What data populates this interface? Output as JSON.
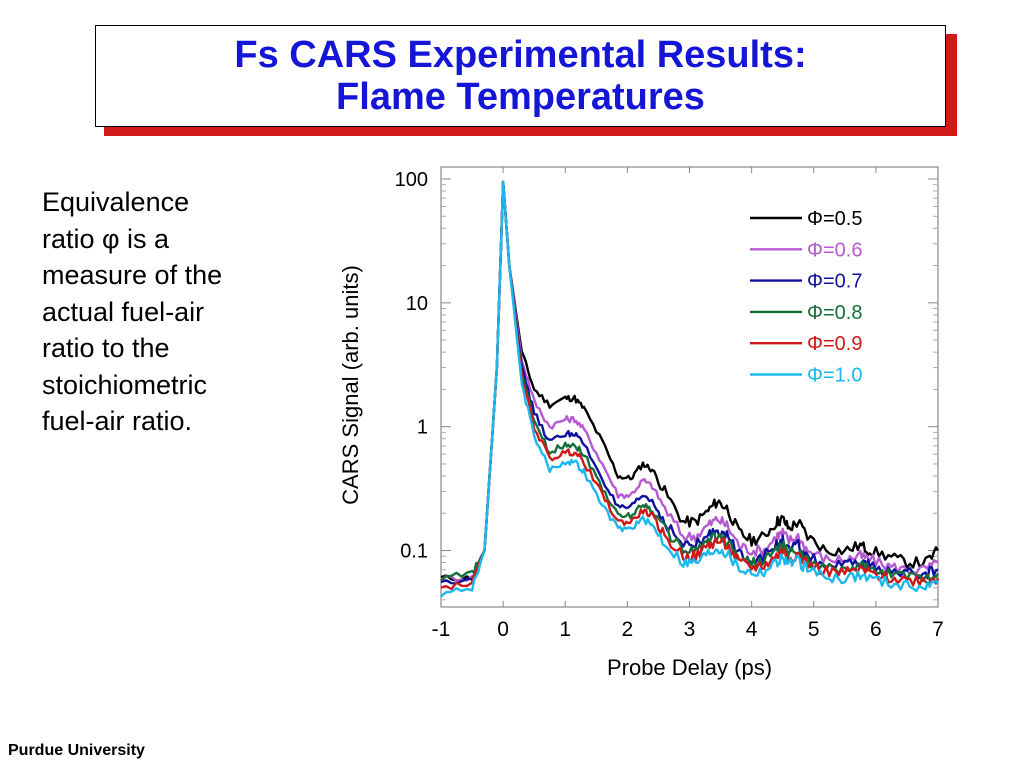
{
  "slide": {
    "title_lines": [
      "Fs CARS Experimental Results:",
      "Flame Temperatures"
    ],
    "body_lines": [
      "Equivalence",
      "ratio φ is a",
      "measure of the",
      "actual fuel-air",
      "ratio to the",
      "stoichiometric",
      "fuel-air ratio."
    ],
    "footer": "Purdue University",
    "title_color": "#1515d8",
    "title_shadow_color": "#d11a1a"
  },
  "chart_data": {
    "type": "line",
    "xlabel": "Probe Delay (ps)",
    "ylabel": "CARS Signal (arb. units)",
    "xlim": [
      -1,
      7
    ],
    "ylim": [
      0.035,
      100
    ],
    "y_scale": "log",
    "x_ticks": [
      "-1",
      "0",
      "1",
      "2",
      "3",
      "4",
      "5",
      "6",
      "7"
    ],
    "y_ticks": [
      {
        "value": 100,
        "label": "100"
      },
      {
        "value": 10,
        "label": "10"
      },
      {
        "value": 1,
        "label": "1"
      },
      {
        "value": 0.1,
        "label": "0.1"
      }
    ],
    "grid": false,
    "legend_position": "top-right",
    "series": [
      {
        "name": "Φ=0.5",
        "color": "#000000",
        "points": [
          [
            -1,
            0.06
          ],
          [
            -0.5,
            0.06
          ],
          [
            -0.3,
            0.1
          ],
          [
            -0.1,
            3
          ],
          [
            0,
            95
          ],
          [
            0.1,
            20
          ],
          [
            0.3,
            4
          ],
          [
            0.5,
            2
          ],
          [
            0.75,
            1.5
          ],
          [
            1.0,
            1.7
          ],
          [
            1.15,
            1.7
          ],
          [
            1.3,
            1.4
          ],
          [
            1.6,
            0.75
          ],
          [
            1.85,
            0.4
          ],
          [
            2.05,
            0.38
          ],
          [
            2.25,
            0.5
          ],
          [
            2.4,
            0.45
          ],
          [
            2.6,
            0.3
          ],
          [
            2.9,
            0.17
          ],
          [
            3.1,
            0.17
          ],
          [
            3.3,
            0.21
          ],
          [
            3.45,
            0.25
          ],
          [
            3.6,
            0.22
          ],
          [
            3.8,
            0.14
          ],
          [
            4.0,
            0.12
          ],
          [
            4.2,
            0.13
          ],
          [
            4.4,
            0.17
          ],
          [
            4.5,
            0.18
          ],
          [
            4.6,
            0.15
          ],
          [
            4.75,
            0.17
          ],
          [
            4.9,
            0.13
          ],
          [
            5.2,
            0.1
          ],
          [
            5.5,
            0.1
          ],
          [
            5.75,
            0.11
          ],
          [
            5.9,
            0.1
          ],
          [
            6.2,
            0.09
          ],
          [
            6.5,
            0.08
          ],
          [
            6.8,
            0.08
          ],
          [
            7.0,
            0.1
          ]
        ]
      },
      {
        "name": "Φ=0.6",
        "color": "#b65ad2",
        "points": [
          [
            -1,
            0.06
          ],
          [
            -0.5,
            0.06
          ],
          [
            -0.3,
            0.1
          ],
          [
            -0.1,
            3
          ],
          [
            0,
            95
          ],
          [
            0.1,
            20
          ],
          [
            0.3,
            3.5
          ],
          [
            0.5,
            1.6
          ],
          [
            0.75,
            1.0
          ],
          [
            1.0,
            1.15
          ],
          [
            1.15,
            1.15
          ],
          [
            1.3,
            0.95
          ],
          [
            1.6,
            0.5
          ],
          [
            1.85,
            0.28
          ],
          [
            2.05,
            0.28
          ],
          [
            2.25,
            0.37
          ],
          [
            2.4,
            0.33
          ],
          [
            2.6,
            0.22
          ],
          [
            2.9,
            0.13
          ],
          [
            3.1,
            0.13
          ],
          [
            3.3,
            0.16
          ],
          [
            3.45,
            0.18
          ],
          [
            3.6,
            0.16
          ],
          [
            3.8,
            0.11
          ],
          [
            4.0,
            0.1
          ],
          [
            4.2,
            0.1
          ],
          [
            4.4,
            0.13
          ],
          [
            4.5,
            0.14
          ],
          [
            4.6,
            0.12
          ],
          [
            4.75,
            0.13
          ],
          [
            4.9,
            0.1
          ],
          [
            5.2,
            0.085
          ],
          [
            5.5,
            0.085
          ],
          [
            5.75,
            0.09
          ],
          [
            5.9,
            0.085
          ],
          [
            6.2,
            0.075
          ],
          [
            6.5,
            0.07
          ],
          [
            6.8,
            0.07
          ],
          [
            7.0,
            0.08
          ]
        ]
      },
      {
        "name": "Φ=0.7",
        "color": "#1010a0",
        "points": [
          [
            -1,
            0.055
          ],
          [
            -0.5,
            0.06
          ],
          [
            -0.3,
            0.1
          ],
          [
            -0.1,
            3
          ],
          [
            0,
            95
          ],
          [
            0.1,
            20
          ],
          [
            0.3,
            3.0
          ],
          [
            0.5,
            1.3
          ],
          [
            0.75,
            0.75
          ],
          [
            1.0,
            0.88
          ],
          [
            1.15,
            0.88
          ],
          [
            1.3,
            0.72
          ],
          [
            1.6,
            0.38
          ],
          [
            1.85,
            0.22
          ],
          [
            2.05,
            0.22
          ],
          [
            2.25,
            0.28
          ],
          [
            2.4,
            0.25
          ],
          [
            2.6,
            0.17
          ],
          [
            2.9,
            0.11
          ],
          [
            3.1,
            0.11
          ],
          [
            3.3,
            0.13
          ],
          [
            3.45,
            0.15
          ],
          [
            3.6,
            0.13
          ],
          [
            3.8,
            0.095
          ],
          [
            4.0,
            0.085
          ],
          [
            4.2,
            0.09
          ],
          [
            4.4,
            0.11
          ],
          [
            4.5,
            0.12
          ],
          [
            4.6,
            0.1
          ],
          [
            4.75,
            0.11
          ],
          [
            4.9,
            0.09
          ],
          [
            5.2,
            0.075
          ],
          [
            5.5,
            0.075
          ],
          [
            5.75,
            0.08
          ],
          [
            5.9,
            0.075
          ],
          [
            6.2,
            0.068
          ],
          [
            6.5,
            0.065
          ],
          [
            6.8,
            0.065
          ],
          [
            7.0,
            0.07
          ]
        ]
      },
      {
        "name": "Φ=0.8",
        "color": "#14703a",
        "points": [
          [
            -1,
            0.06
          ],
          [
            -0.5,
            0.065
          ],
          [
            -0.3,
            0.1
          ],
          [
            -0.1,
            3
          ],
          [
            0,
            95
          ],
          [
            0.1,
            20
          ],
          [
            0.3,
            2.7
          ],
          [
            0.5,
            1.1
          ],
          [
            0.75,
            0.62
          ],
          [
            1.0,
            0.72
          ],
          [
            1.15,
            0.72
          ],
          [
            1.3,
            0.6
          ],
          [
            1.6,
            0.32
          ],
          [
            1.85,
            0.19
          ],
          [
            2.05,
            0.19
          ],
          [
            2.25,
            0.24
          ],
          [
            2.4,
            0.21
          ],
          [
            2.6,
            0.15
          ],
          [
            2.9,
            0.1
          ],
          [
            3.1,
            0.1
          ],
          [
            3.3,
            0.12
          ],
          [
            3.45,
            0.13
          ],
          [
            3.6,
            0.12
          ],
          [
            3.8,
            0.088
          ],
          [
            4.0,
            0.08
          ],
          [
            4.2,
            0.083
          ],
          [
            4.4,
            0.1
          ],
          [
            4.5,
            0.11
          ],
          [
            4.6,
            0.095
          ],
          [
            4.75,
            0.1
          ],
          [
            4.9,
            0.083
          ],
          [
            5.2,
            0.072
          ],
          [
            5.5,
            0.07
          ],
          [
            5.75,
            0.075
          ],
          [
            5.9,
            0.07
          ],
          [
            6.2,
            0.064
          ],
          [
            6.5,
            0.062
          ],
          [
            6.8,
            0.062
          ],
          [
            7.0,
            0.065
          ]
        ]
      },
      {
        "name": "Φ=0.9",
        "color": "#d01818",
        "points": [
          [
            -1,
            0.05
          ],
          [
            -0.5,
            0.055
          ],
          [
            -0.3,
            0.1
          ],
          [
            -0.1,
            3
          ],
          [
            0,
            95
          ],
          [
            0.1,
            20
          ],
          [
            0.3,
            2.5
          ],
          [
            0.5,
            1.0
          ],
          [
            0.75,
            0.55
          ],
          [
            1.0,
            0.62
          ],
          [
            1.15,
            0.62
          ],
          [
            1.3,
            0.52
          ],
          [
            1.6,
            0.28
          ],
          [
            1.85,
            0.17
          ],
          [
            2.05,
            0.17
          ],
          [
            2.25,
            0.21
          ],
          [
            2.4,
            0.19
          ],
          [
            2.6,
            0.13
          ],
          [
            2.9,
            0.09
          ],
          [
            3.1,
            0.09
          ],
          [
            3.3,
            0.11
          ],
          [
            3.45,
            0.12
          ],
          [
            3.6,
            0.11
          ],
          [
            3.8,
            0.08
          ],
          [
            4.0,
            0.073
          ],
          [
            4.2,
            0.076
          ],
          [
            4.4,
            0.09
          ],
          [
            4.5,
            0.1
          ],
          [
            4.6,
            0.088
          ],
          [
            4.75,
            0.093
          ],
          [
            4.9,
            0.078
          ],
          [
            5.2,
            0.068
          ],
          [
            5.5,
            0.066
          ],
          [
            5.75,
            0.07
          ],
          [
            5.9,
            0.066
          ],
          [
            6.2,
            0.06
          ],
          [
            6.5,
            0.058
          ],
          [
            6.8,
            0.058
          ],
          [
            7.0,
            0.06
          ]
        ]
      },
      {
        "name": "Φ=1.0",
        "color": "#1ab8ee",
        "points": [
          [
            -1,
            0.045
          ],
          [
            -0.5,
            0.05
          ],
          [
            -0.3,
            0.1
          ],
          [
            -0.1,
            3
          ],
          [
            0,
            95
          ],
          [
            0.1,
            20
          ],
          [
            0.3,
            2.2
          ],
          [
            0.5,
            0.85
          ],
          [
            0.75,
            0.45
          ],
          [
            1.0,
            0.52
          ],
          [
            1.15,
            0.52
          ],
          [
            1.3,
            0.43
          ],
          [
            1.6,
            0.23
          ],
          [
            1.85,
            0.15
          ],
          [
            2.05,
            0.15
          ],
          [
            2.25,
            0.18
          ],
          [
            2.4,
            0.16
          ],
          [
            2.6,
            0.115
          ],
          [
            2.9,
            0.08
          ],
          [
            3.1,
            0.08
          ],
          [
            3.3,
            0.095
          ],
          [
            3.45,
            0.105
          ],
          [
            3.6,
            0.095
          ],
          [
            3.8,
            0.072
          ],
          [
            4.0,
            0.066
          ],
          [
            4.2,
            0.068
          ],
          [
            4.4,
            0.08
          ],
          [
            4.5,
            0.088
          ],
          [
            4.6,
            0.078
          ],
          [
            4.75,
            0.082
          ],
          [
            4.9,
            0.07
          ],
          [
            5.2,
            0.062
          ],
          [
            5.5,
            0.06
          ],
          [
            5.75,
            0.063
          ],
          [
            5.9,
            0.06
          ],
          [
            6.2,
            0.055
          ],
          [
            6.5,
            0.052
          ],
          [
            6.8,
            0.052
          ],
          [
            7.0,
            0.054
          ]
        ]
      }
    ]
  }
}
